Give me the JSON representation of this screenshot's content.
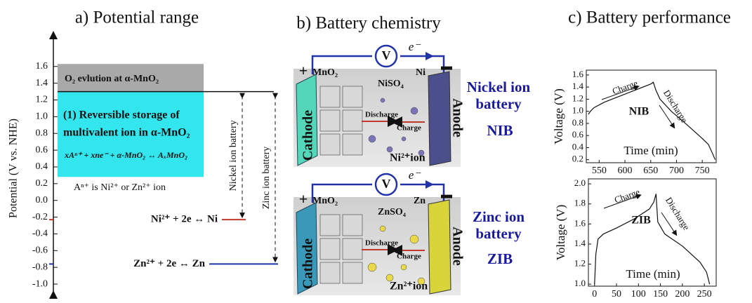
{
  "panel_a": {
    "title": "a) Potential range",
    "ylabel": "Potential (V vs. NHE)",
    "ylim": [
      -1.05,
      1.95
    ],
    "yticks": [
      {
        "value": -1,
        "label": "-1.0"
      },
      -0.8,
      -0.6,
      -0.4,
      -0.2,
      {
        "value": 0,
        "label": "0.0"
      },
      0.2,
      0.4,
      0.6,
      0.8,
      {
        "value": 1,
        "label": "1.0"
      },
      1.2,
      1.4,
      1.6
    ],
    "o2_region": {
      "label": "O₂ evlution at α-MnO₂",
      "from": 1.3,
      "to": 1.63
    },
    "storage_region": {
      "lines": [
        "(1) Reversible storage of",
        "multivalent ion in α-MnO₂"
      ],
      "equation": "xAⁿ⁺ + xne⁻ + α-MnO₂ ↔ AₓMnO₂",
      "from": 0.28,
      "to": 1.3
    },
    "ion_note": "Aⁿ⁺ is Ni²⁺ or Zn²⁺ ion",
    "upper_level": 1.3,
    "ni_level": {
      "label": "Ni²⁺ + 2e ↔ Ni",
      "value": -0.23
    },
    "zn_level": {
      "label": "Zn²⁺ + 2e ↔ Zn",
      "value": -0.76
    },
    "nickel_arrow": "Nickel ion battery",
    "zinc_arrow": "Zinc ion battery"
  },
  "panel_b": {
    "title": "b) Battery chemistry",
    "cells": [
      {
        "meter": "V",
        "electron": "e⁻",
        "plus": "+",
        "minus": "▬",
        "cathode_material": "MnO₂",
        "electrolyte": "NiSO₄",
        "anode_material": "Ni",
        "cathode": "Cathode",
        "anode": "Anode",
        "discharge": "Discharge",
        "charge": "Charge",
        "ion": "Ni²⁺ion",
        "name_lines": [
          "Nickel ion",
          "battery"
        ],
        "abbr": "NIB"
      },
      {
        "meter": "V",
        "electron": "e⁻",
        "plus": "+",
        "minus": "▬",
        "cathode_material": "MnO₂",
        "electrolyte": "ZnSO₄",
        "anode_material": "Zn",
        "cathode": "Cathode",
        "anode": "Anode",
        "discharge": "Discharge",
        "charge": "Charge",
        "ion": "Zn²⁺ion",
        "name_lines": [
          "Zinc ion",
          "battery"
        ],
        "abbr": "ZIB"
      }
    ]
  },
  "panel_c": {
    "title": "c) Battery performance",
    "charts": [
      {
        "ylabel": "Voltage (V)",
        "xlabel": "Time (min)",
        "label": "NIB",
        "charge": "Charge",
        "discharge": "Discharge",
        "xlim": [
          525,
          777
        ],
        "ylim": [
          0.15,
          1.68
        ],
        "xticks": [
          550,
          600,
          650,
          700,
          750
        ],
        "yticks": [
          0.2,
          0.4,
          0.6,
          0.8,
          {
            "value": 1,
            "label": "1.0"
          },
          1.2,
          1.4,
          1.6
        ],
        "x": [
          529,
          533,
          540,
          560,
          590,
          620,
          650,
          655,
          660,
          668,
          690,
          720,
          750,
          762,
          770,
          775
        ],
        "y": [
          0.95,
          1.0,
          1.06,
          1.15,
          1.25,
          1.35,
          1.45,
          1.48,
          1.35,
          1.2,
          1.0,
          0.78,
          0.55,
          0.45,
          0.3,
          0.2
        ]
      },
      {
        "ylabel": "Voltage (V)",
        "xlabel": "Time (min)",
        "label": "ZIB",
        "charge": "Charge",
        "discharge": "Discharge",
        "xlim": [
          -14,
          277
        ],
        "ylim": [
          0.98,
          2.05
        ],
        "xticks": [
          0,
          50,
          100,
          150,
          200,
          250
        ],
        "yticks": [
          {
            "value": 1,
            "label": "1.0"
          },
          1.2,
          1.4,
          1.6,
          1.8,
          {
            "value": 2,
            "label": "2.0"
          }
        ],
        "x": [
          0,
          3,
          8,
          20,
          50,
          90,
          125,
          135,
          140,
          144,
          160,
          200,
          240,
          255,
          262
        ],
        "y": [
          1.0,
          1.3,
          1.45,
          1.5,
          1.56,
          1.65,
          1.75,
          1.82,
          1.9,
          1.62,
          1.5,
          1.38,
          1.22,
          1.12,
          1.0
        ]
      }
    ]
  }
}
